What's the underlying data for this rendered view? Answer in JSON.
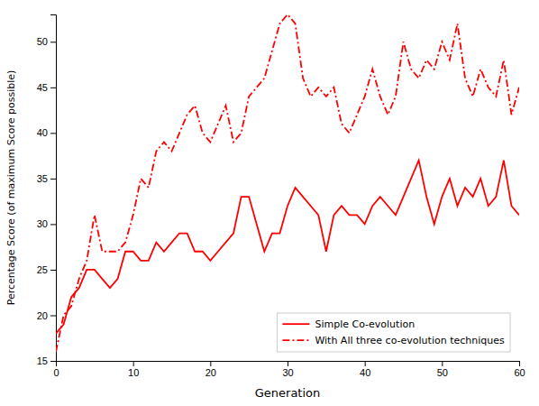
{
  "chart_data": {
    "type": "line",
    "xlabel": "Generation",
    "ylabel": "Percentage Score (of maximum Score possible)",
    "x": [
      0,
      1,
      2,
      3,
      4,
      5,
      6,
      7,
      8,
      9,
      10,
      11,
      12,
      13,
      14,
      15,
      16,
      17,
      18,
      19,
      20,
      21,
      22,
      23,
      24,
      25,
      26,
      27,
      28,
      29,
      30,
      31,
      32,
      33,
      34,
      35,
      36,
      37,
      38,
      39,
      40,
      41,
      42,
      43,
      44,
      45,
      46,
      47,
      48,
      49,
      50,
      51,
      52,
      53,
      54,
      55,
      56,
      57,
      58,
      59,
      60
    ],
    "series": [
      {
        "name": "Simple Co-evolution",
        "color": "#ff0000",
        "line_style": "solid",
        "values": [
          18,
          19,
          22,
          23,
          25,
          25,
          24,
          23,
          24,
          27,
          27,
          26,
          26,
          28,
          27,
          28,
          29,
          29,
          27,
          27,
          26,
          27,
          28,
          29,
          33,
          33,
          30,
          27,
          29,
          29,
          32,
          34,
          33,
          32,
          31,
          27,
          31,
          32,
          31,
          31,
          30,
          32,
          33,
          32,
          31,
          33,
          35,
          37,
          33,
          30,
          33,
          35,
          32,
          34,
          33,
          35,
          32,
          33,
          37,
          32,
          31
        ]
      },
      {
        "name": "With All three co-evolution techniques",
        "color": "#ff0000",
        "line_style": "dashdot",
        "values": [
          16,
          20,
          21,
          24,
          26,
          31,
          27,
          27,
          27,
          28,
          31,
          35,
          34,
          38,
          39,
          38,
          40,
          42,
          43,
          40,
          39,
          41,
          43,
          39,
          40,
          44,
          45,
          46,
          49,
          52,
          53,
          52,
          46,
          44,
          45,
          44,
          45,
          41,
          40,
          42,
          44,
          47,
          44,
          42,
          44,
          50,
          47,
          46,
          48,
          47,
          50,
          48,
          52,
          46,
          44,
          47,
          45,
          44,
          48,
          42,
          45
        ]
      }
    ],
    "xlim": [
      0,
      60
    ],
    "ylim": [
      15,
      53
    ],
    "xticks": [
      0,
      10,
      20,
      30,
      40,
      50,
      60
    ],
    "yticks": [
      15,
      20,
      25,
      30,
      35,
      40,
      45,
      50
    ],
    "legend": "lower right"
  }
}
